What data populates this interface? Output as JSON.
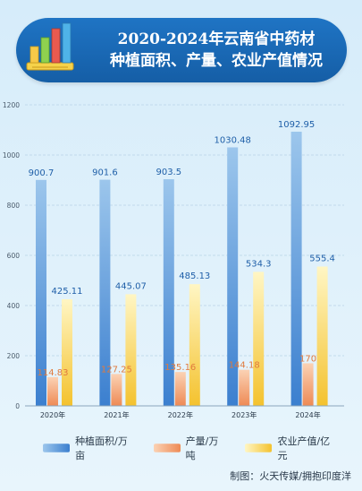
{
  "header": {
    "title_line1": "2020-2024年云南省中药材",
    "title_line2": "种植面积、产量、农业产值情况"
  },
  "credit": "制图：火天传媒/拥抱印度洋",
  "colors": {
    "area": "#4a8fd6",
    "output": "#f29a68",
    "value": "#f7c948"
  },
  "chart_data": {
    "type": "bar",
    "categories": [
      "2020年",
      "2021年",
      "2022年",
      "2023年",
      "2024年"
    ],
    "ylim": [
      0,
      1200
    ],
    "yticks": [
      0,
      200,
      400,
      600,
      800,
      1000,
      1200
    ],
    "grid": true,
    "legend_position": "bottom",
    "series": [
      {
        "name": "种植面积/万亩",
        "values": [
          900.7,
          901.6,
          903.5,
          1030.48,
          1092.95
        ],
        "labels": [
          "900.7",
          "901.6",
          "903.5",
          "1030.48",
          "1092.95"
        ]
      },
      {
        "name": "产量/万吨",
        "values": [
          114.83,
          127.25,
          135.16,
          144.18,
          170
        ],
        "labels": [
          "114.83",
          "127.25",
          "135.16",
          "144.18",
          "170"
        ]
      },
      {
        "name": "农业产值/亿元",
        "values": [
          425.11,
          445.07,
          485.13,
          534.3,
          555.4
        ],
        "labels": [
          "425.11",
          "445.07",
          "485.13",
          "534.3",
          "555.4"
        ]
      }
    ]
  }
}
